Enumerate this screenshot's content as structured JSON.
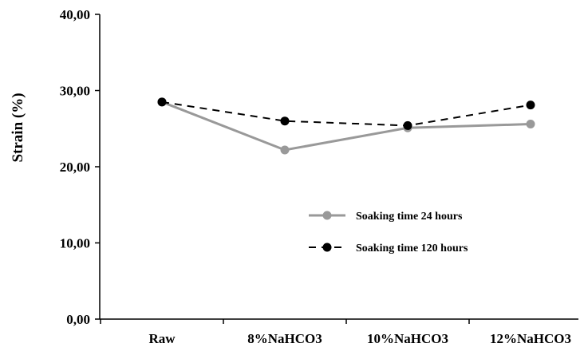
{
  "chart_data": {
    "type": "line",
    "title": "",
    "xlabel": "",
    "ylabel": "Strain (%)",
    "categories": [
      "Raw",
      "8%NaHCO3",
      "10%NaHCO3",
      "12%NaHCO3"
    ],
    "ylim": [
      0,
      40
    ],
    "yticks": [
      "0,00",
      "10,00",
      "20,00",
      "30,00",
      "40,00"
    ],
    "grid": false,
    "legend_position": "center-right",
    "series": [
      {
        "name": "Soaking time 24 hours",
        "values": [
          28.5,
          22.2,
          25.1,
          25.6
        ],
        "color": "#999999",
        "line_style": "solid"
      },
      {
        "name": "Soaking time 120 hours",
        "values": [
          28.5,
          26.0,
          25.4,
          28.1
        ],
        "color": "#000000",
        "line_style": "dashed"
      }
    ]
  }
}
